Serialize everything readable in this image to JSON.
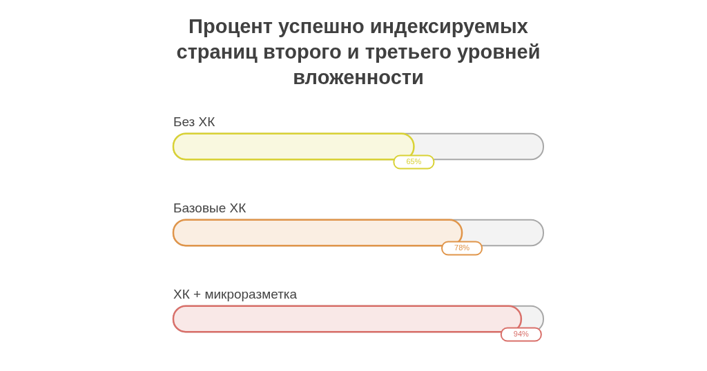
{
  "chart_data": {
    "type": "bar",
    "orientation": "horizontal",
    "title": "Процент успешно индексируемых страниц второго и третьего уровней вложенности",
    "categories": [
      "Без ХК",
      "Базовые ХК",
      "ХК + микроразметка"
    ],
    "values": [
      65,
      78,
      94
    ],
    "value_labels": [
      "65%",
      "78%",
      "94%"
    ],
    "colors": [
      "#d9d235",
      "#e0954a",
      "#d9706a"
    ],
    "xlim": [
      0,
      100
    ],
    "tick_labels": "y",
    "grid": false
  }
}
